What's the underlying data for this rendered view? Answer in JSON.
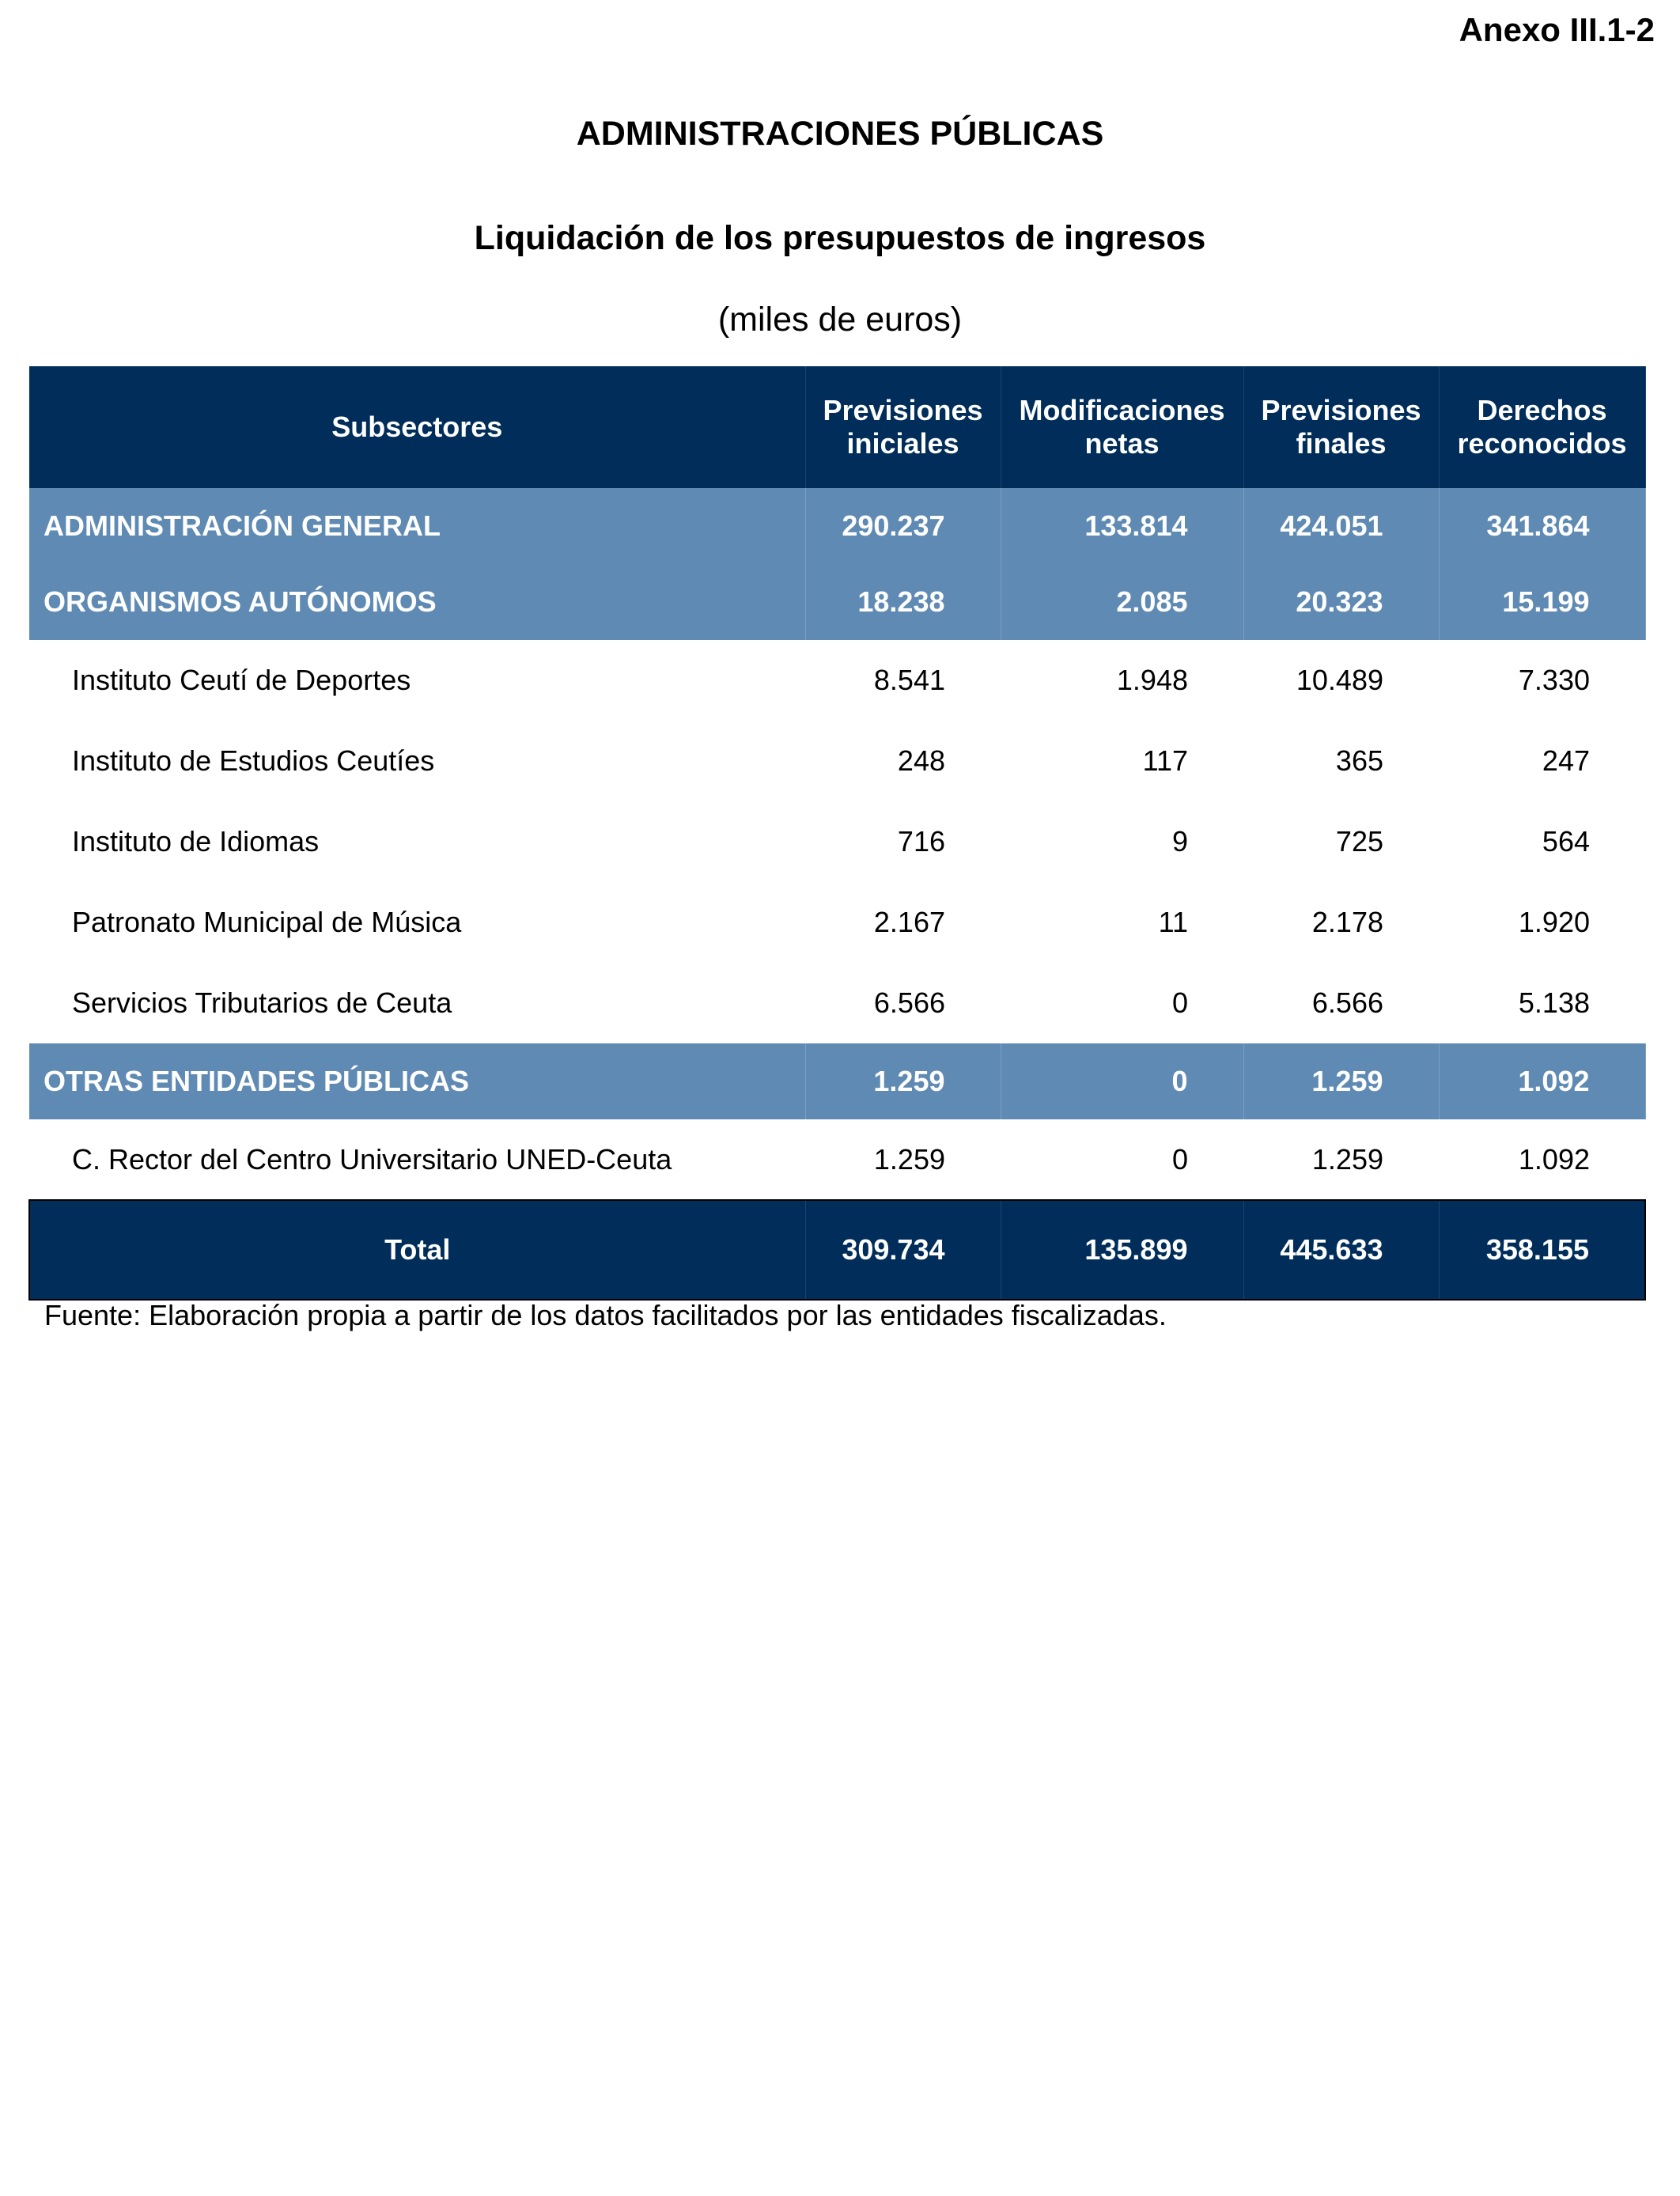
{
  "annex": "Anexo III.1-2",
  "title": "ADMINISTRACIONES PÚBLICAS",
  "subtitle": "Liquidación de los presupuestos de ingresos",
  "units": "(miles de euros)",
  "headers": [
    "Subsectores",
    "Previsiones iniciales",
    "Modificaciones netas",
    "Previsiones finales",
    "Derechos reconocidos"
  ],
  "rows": {
    "admin_general": [
      "ADMINISTRACIÓN GENERAL",
      "290.237",
      "133.814",
      "424.051",
      "341.864"
    ],
    "organismos": [
      "ORGANISMOS AUTÓNOMOS",
      "18.238",
      "2.085",
      "20.323",
      "15.199"
    ],
    "deportes": [
      "Instituto Ceutí de Deportes",
      "8.541",
      "1.948",
      "10.489",
      "7.330"
    ],
    "estudios": [
      "Instituto de Estudios Ceutíes",
      "248",
      "117",
      "365",
      "247"
    ],
    "idiomas": [
      "Instituto de Idiomas",
      "716",
      "9",
      "725",
      "564"
    ],
    "musica": [
      "Patronato Municipal de Música",
      "2.167",
      "11",
      "2.178",
      "1.920"
    ],
    "tributarios": [
      "Servicios Tributarios de Ceuta",
      "6.566",
      "0",
      "6.566",
      "5.138"
    ],
    "otras": [
      "OTRAS ENTIDADES PÚBLICAS",
      "1.259",
      "0",
      "1.259",
      "1.092"
    ],
    "uned": [
      "C. Rector del Centro Universitario UNED-Ceuta",
      "1.259",
      "0",
      "1.259",
      "1.092"
    ],
    "total": [
      "Total",
      "309.734",
      "135.899",
      "445.633",
      "358.155"
    ]
  },
  "source": "Fuente: Elaboración propia a partir de los datos facilitados por las entidades fiscalizadas.",
  "colors": {
    "header": "#002d5a",
    "group": "#5f8ab3"
  }
}
